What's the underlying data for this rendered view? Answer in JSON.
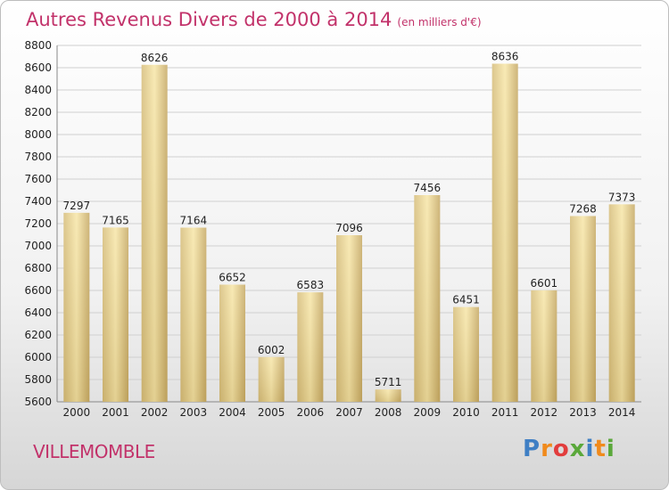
{
  "title": "Autres Revenus Divers de 2000 à 2014",
  "unit_note": "(en milliers d'€)",
  "city": "VILLEMOMBLE",
  "logo": {
    "text": "Proxiti",
    "letters": [
      "P",
      "r",
      "o",
      "x",
      "i",
      "t",
      "i"
    ],
    "colors": [
      "#3f7fc4",
      "#f08a1c",
      "#e23d3d",
      "#5aa83a",
      "#3f7fc4",
      "#f08a1c",
      "#5aa83a"
    ]
  },
  "colors": {
    "title": "#c2326a",
    "bar_light": "#f6e2a0",
    "bar_dark": "#c9ad68"
  },
  "chart_data": {
    "type": "bar",
    "categories": [
      "2000",
      "2001",
      "2002",
      "2003",
      "2004",
      "2005",
      "2006",
      "2007",
      "2008",
      "2009",
      "2010",
      "2011",
      "2012",
      "2013",
      "2014"
    ],
    "values": [
      7297,
      7165,
      8626,
      7164,
      6652,
      6002,
      6583,
      7096,
      5711,
      7456,
      6451,
      8636,
      6601,
      7268,
      7373
    ],
    "ylim": [
      5600,
      8800
    ],
    "yticks": [
      5600,
      5800,
      6000,
      6200,
      6400,
      6600,
      6800,
      7000,
      7200,
      7400,
      7600,
      7800,
      8000,
      8200,
      8400,
      8600,
      8800
    ],
    "grid": true
  }
}
